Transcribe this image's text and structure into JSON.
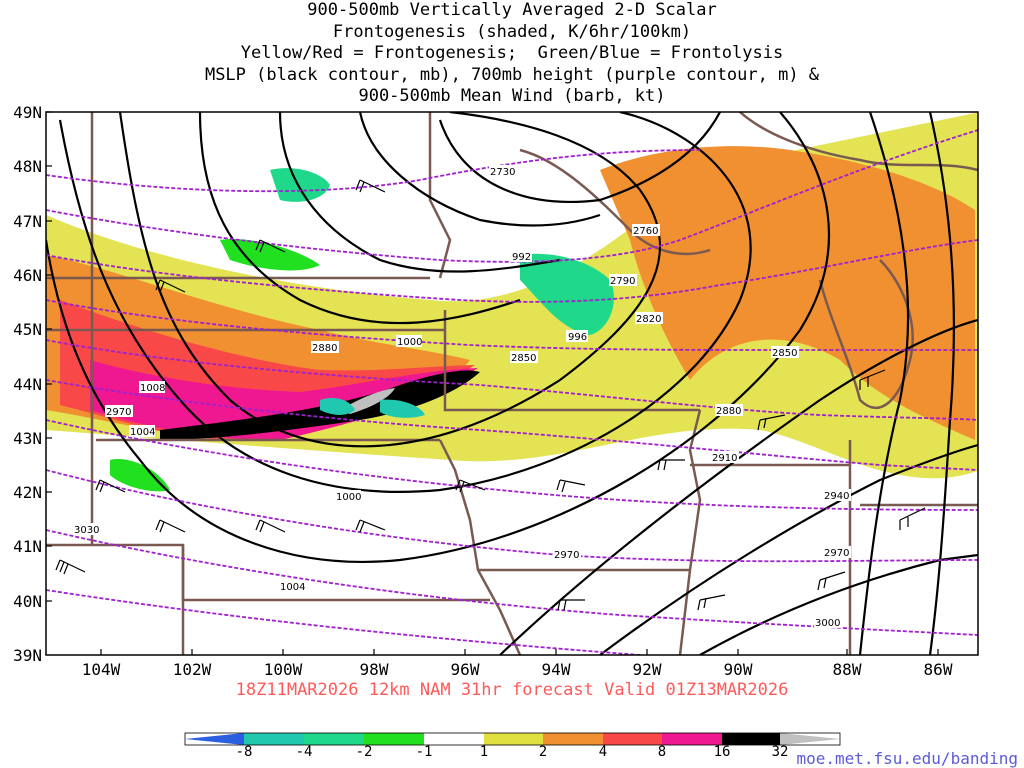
{
  "title_lines": [
    "900-500mb Vertically Averaged 2-D Scalar",
    "Frontogenesis (shaded, K/6hr/100km)",
    "Yellow/Red = Frontogenesis;  Green/Blue = Frontolysis",
    "MSLP (black contour, mb), 700mb height (purple contour, m) &",
    "900-500mb Mean Wind (barb, kt)"
  ],
  "lat_labels": [
    "49N",
    "48N",
    "47N",
    "46N",
    "45N",
    "44N",
    "43N",
    "42N",
    "41N",
    "40N",
    "39N"
  ],
  "lon_labels": [
    "104W",
    "102W",
    "100W",
    "98W",
    "96W",
    "94W",
    "92W",
    "90W",
    "88W",
    "86W"
  ],
  "valid_line": "18Z11MAR2026 12km NAM 31hr forecast Valid 01Z13MAR2026",
  "colorbar": {
    "ticks": [
      "-8",
      "-4",
      "-2",
      "-1",
      "1",
      "2",
      "4",
      "8",
      "16",
      "32"
    ],
    "colors": [
      "#2b5fe0",
      "#20c8b0",
      "#20d88a",
      "#20e020",
      "#ffffff",
      "#e0e040",
      "#f09030",
      "#f84848",
      "#f01890",
      "#000000",
      "#c0c0c0"
    ]
  },
  "credit": "moe.met.fsu.edu/banding",
  "mslp_labels": [
    "992",
    "996",
    "1000",
    "1000",
    "1004",
    "1004",
    "1008"
  ],
  "height_labels": [
    "2730",
    "2760",
    "2790",
    "2820",
    "2850",
    "2850",
    "2880",
    "2880",
    "2910",
    "2940",
    "2970",
    "2970",
    "2970",
    "3000",
    "3030"
  ],
  "colors": {
    "mslp": "#000000",
    "height": "#a020d0",
    "borders": "#7a5a50",
    "frontogenesis_weak": "#e0e040",
    "frontogenesis_moderate": "#f09030",
    "frontogenesis_strong": "#f84848",
    "frontogenesis_intense": "#f01890",
    "frontolysis": "#20d88a"
  }
}
